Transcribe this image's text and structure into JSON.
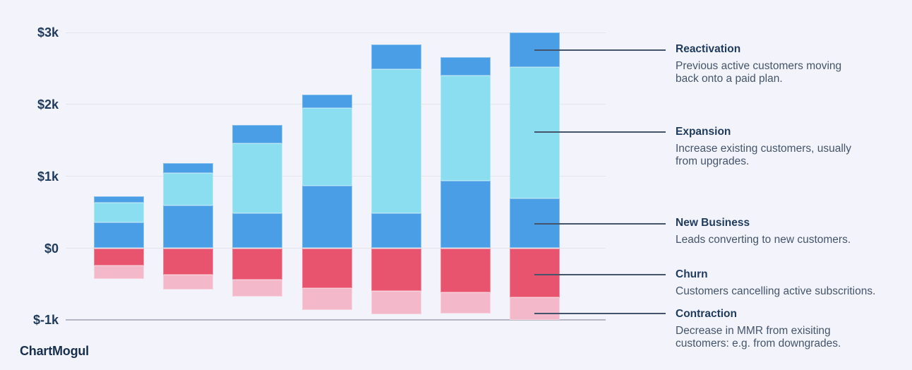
{
  "watermark": "ChartMogul",
  "colors": {
    "background": "#f3f4fb",
    "gridline": "#e4e5ea",
    "axis_line": "#b3b7c3",
    "callout_line": "#44546a",
    "title_text": "#1e3a5c",
    "description_text": "#44546a",
    "blue": "#499ee5",
    "cyan": "#8adef0",
    "red": "#e8536d",
    "pink": "#f3b9ca"
  },
  "chart_data": {
    "type": "bar",
    "stacked": true,
    "title": "",
    "xlabel": "",
    "ylabel": "",
    "x_tick_labels_visible": false,
    "categories": [
      "",
      "",
      "",
      "",
      "",
      "",
      ""
    ],
    "ytick_labels": [
      "$3k",
      "$2k",
      "$1k",
      "$0",
      "$-1k"
    ],
    "ytick_values": [
      3000,
      2000,
      1000,
      0,
      -1000
    ],
    "ylim": [
      -1100,
      3100
    ],
    "grid": true,
    "legend_position": "right",
    "positive_stack_order_bottom_to_top": [
      "New Business",
      "Expansion",
      "Reactivation"
    ],
    "negative_stack_order_top_to_bottom": [
      "Churn",
      "Contraction"
    ],
    "series": [
      {
        "name": "Reactivation",
        "color": "#499ee5",
        "values": [
          90,
          130,
          250,
          190,
          340,
          260,
          480
        ]
      },
      {
        "name": "Expansion",
        "color": "#8adef0",
        "values": [
          270,
          460,
          970,
          1080,
          2000,
          1460,
          1830
        ]
      },
      {
        "name": "New Business",
        "color": "#499ee5",
        "values": [
          360,
          590,
          490,
          870,
          490,
          940,
          690
        ]
      },
      {
        "name": "Churn",
        "color": "#e8536d",
        "values": [
          -240,
          -370,
          -440,
          -555,
          -595,
          -615,
          -680
        ]
      },
      {
        "name": "Contraction",
        "color": "#f3b9ca",
        "values": [
          -190,
          -200,
          -235,
          -300,
          -320,
          -290,
          -320
        ]
      }
    ]
  },
  "legend": {
    "entries": [
      {
        "title": "Reactivation",
        "description": "Previous active customers moving\nback onto a paid plan."
      },
      {
        "title": "Expansion",
        "description": "Increase existing customers, usually\nfrom upgrades."
      },
      {
        "title": "New Business",
        "description": "Leads converting to new customers."
      },
      {
        "title": "Churn",
        "description": "Customers cancelling active subscritions."
      },
      {
        "title": "Contraction",
        "description": "Decrease in MMR from exisiting\ncustomers: e.g. from downgrades."
      }
    ]
  }
}
